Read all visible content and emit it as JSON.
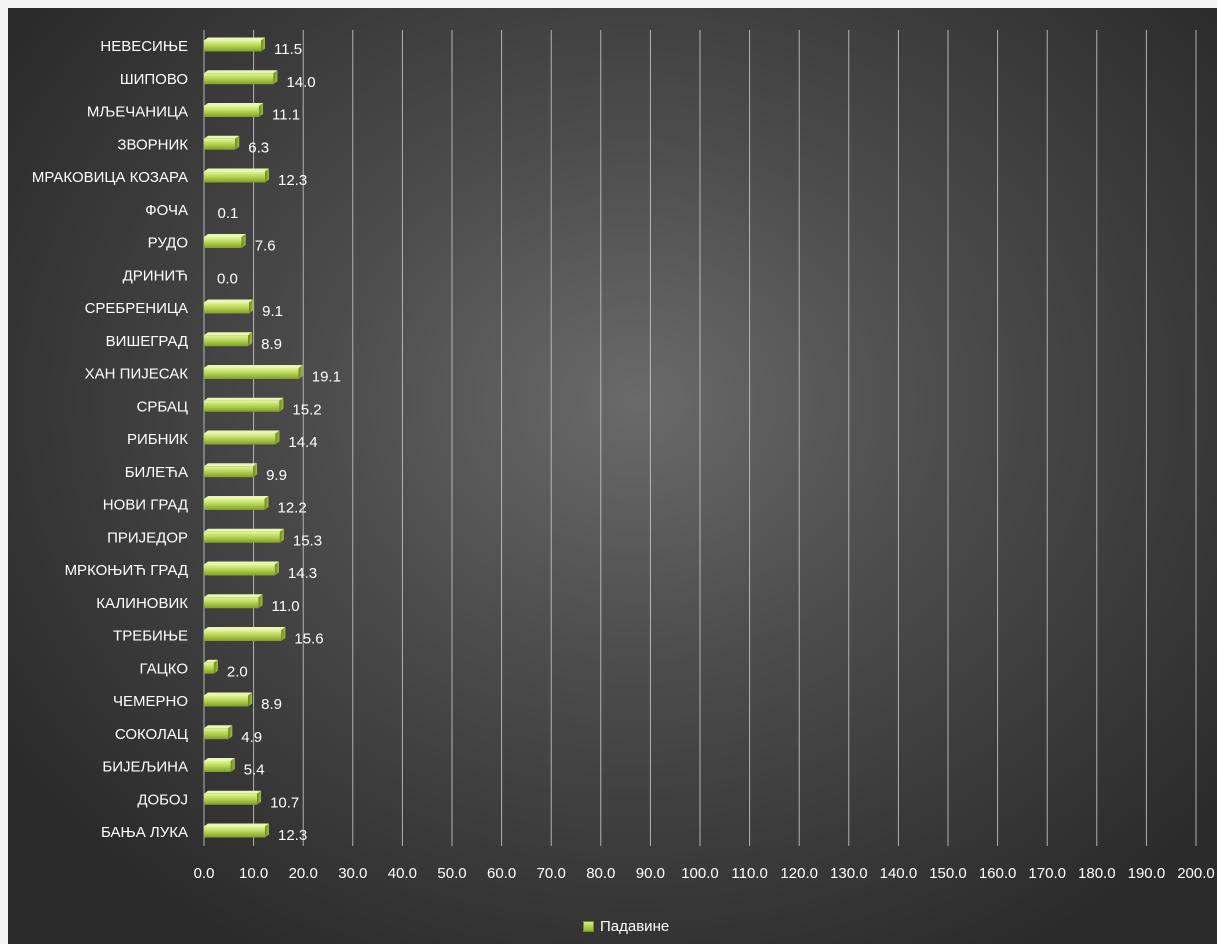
{
  "chart_data": {
    "type": "bar",
    "orientation": "horizontal",
    "categories": [
      "НЕВЕСИЊЕ",
      "ШИПОВО",
      "МЉЕЧАНИЦА",
      "ЗВОРНИК",
      "МРАКОВИЦА КОЗАРА",
      "ФОЧА",
      "РУДО",
      "ДРИНИЋ",
      "СРЕБРЕНИЦА",
      "ВИШЕГРАД",
      "ХАН ПИЈЕСАК",
      "СРБАЦ",
      "РИБНИК",
      "БИЛЕЋА",
      "НОВИ ГРАД",
      "ПРИЈЕДОР",
      "МРКОЊИЋ ГРАД",
      "КАЛИНОВИК",
      "ТРЕБИЊЕ",
      "ГАЦКО",
      "ЧЕМЕРНО",
      "СОКОЛАЦ",
      "БИЈЕЉИНА",
      "ДОБОЈ",
      "БАЊА ЛУКА"
    ],
    "values": [
      11.5,
      14.0,
      11.1,
      6.3,
      12.3,
      0.1,
      7.6,
      0.0,
      9.1,
      8.9,
      19.1,
      15.2,
      14.4,
      9.9,
      12.2,
      15.3,
      14.3,
      11.0,
      15.6,
      2.0,
      8.9,
      4.9,
      5.4,
      10.7,
      12.3
    ],
    "value_labels": [
      "11.5",
      "14.0",
      "11.1",
      "6.3",
      "12.3",
      "0.1",
      "7.6",
      "0.0",
      "9.1",
      "8.9",
      "19.1",
      "15.2",
      "14.4",
      "9.9",
      "12.2",
      "15.3",
      "14.3",
      "11.0",
      "15.6",
      "2.0",
      "8.9",
      "4.9",
      "5.4",
      "10.7",
      "12.3"
    ],
    "series": [
      {
        "name": "Падавине",
        "color": "#a8c83c"
      }
    ],
    "xlim": [
      0,
      200
    ],
    "x_ticks": [
      "0.0",
      "10.0",
      "20.0",
      "30.0",
      "40.0",
      "50.0",
      "60.0",
      "70.0",
      "80.0",
      "90.0",
      "100.0",
      "110.0",
      "120.0",
      "130.0",
      "140.0",
      "150.0",
      "160.0",
      "170.0",
      "180.0",
      "190.0",
      "200.0"
    ],
    "grid": "vertical",
    "legend": "bottom",
    "background": "#4a4a4a",
    "bar_color_light": "#d6ec8a",
    "bar_color_dark": "#7f9f28"
  },
  "legend": {
    "label": "Падавине"
  }
}
